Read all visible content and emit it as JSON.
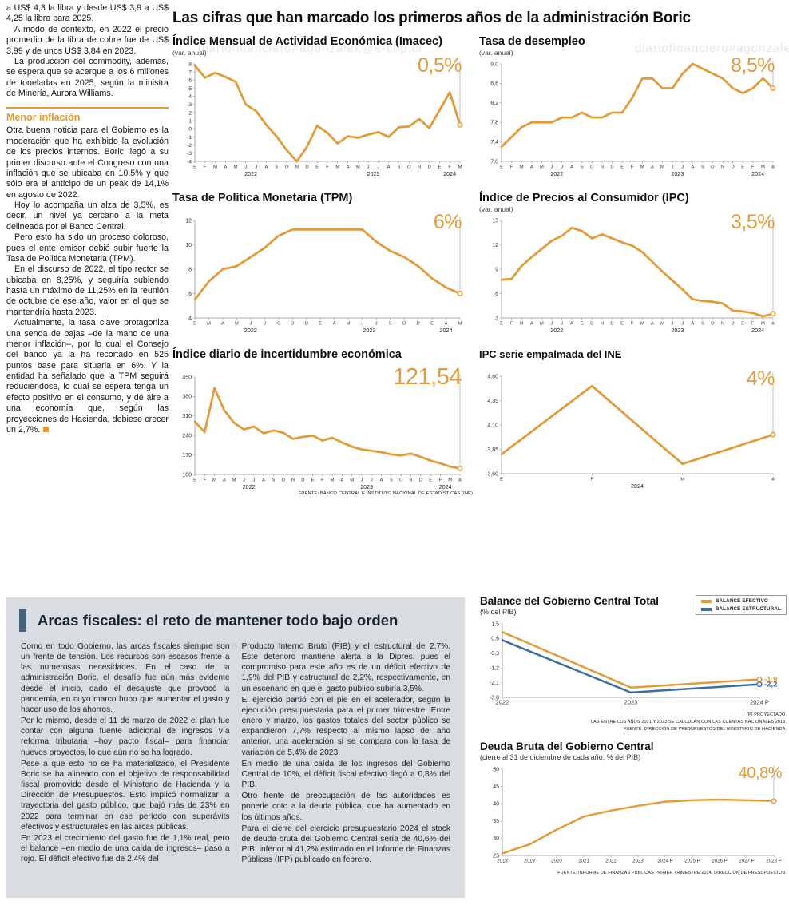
{
  "colors": {
    "orange": "#E39B3A",
    "blue": "#3C6E9F",
    "gray_box": "#D9DCE0",
    "accent_bar": "#47627B"
  },
  "watermark_text": "diariofinanciero#agonzalek@e-clip.cl",
  "main_title": "Las cifras que han marcado los primeros años de la administración Boric",
  "left_article": {
    "paragraphs": [
      "a US$ 4,3 la libra y desde US$ 3,9 a US$ 4,25 la libra para 2025.",
      "A modo de contexto, en 2022 el precio promedio de la libra de cobre fue de US$ 3,99 y de unos US$ 3,84 en 2023.",
      "La producción del commodity, además, se espera que se acerque a los 6 millones de toneladas en 2025, según la ministra de Minería, Aurora Williams."
    ],
    "subhead": "Menor inflación",
    "paragraphs2": [
      "Otra buena noticia para el Gobierno es la moderación que ha exhibido la evolución de los precios internos. Boric llegó a su primer discurso ante el Congreso con una inflación que se ubicaba en 10,5% y que sólo era el anticipo de un peak de 14,1% en agosto de 2022.",
      "Hoy lo acompaña un alza de 3,5%, es decir, un nivel ya cercano a la meta delineada por el Banco Central.",
      "Pero esto ha sido un proceso doloroso, pues el ente emisor debió subir fuerte la Tasa de Política Monetaria (TPM).",
      "En el discurso de 2022, el tipo rector se ubicaba en 8,25%, y seguiría subiendo hasta un máximo de 11,25% en la reunión de octubre de ese año, valor en el que se mantendría hasta 2023.",
      "Actualmente, la tasa clave protagoniza una senda de bajas –de la mano de una menor inflación–, por lo cual el Consejo del banco ya la ha recortado en 525 puntos base para situarla en 6%. Y la entidad ha señalado que la TPM seguirá reduciéndose, lo cual se espera tenga un efecto positivo en el consumo, y dé aire a una economía que, según las proyecciones de Hacienda, debiese crecer un 2,7%."
    ]
  },
  "fiscal_article": {
    "title": "Arcas fiscales: el reto de mantener todo bajo orden",
    "col1": [
      "Como en todo Gobierno, las arcas fiscales siempre son un frente de tensión. Los recursos son escasos frente a las numerosas necesidades. En el caso de la administración Boric, el desafío fue aún más evidente desde el inicio, dado el desajuste que provocó la pandemia, en cuyo marco hubo que aumentar el gasto y hacer uso de los ahorros.",
      "Por lo mismo, desde el 11 de marzo de 2022 el plan fue contar con alguna fuente adicional de ingresos vía reforma tributaria –hoy pacto fiscal– para financiar nuevos proyectos, lo que aún no se ha logrado.",
      "Pese a que esto no se ha materializado, el Presidente Boric se ha alineado con el objetivo de responsabilidad fiscal promovido desde el Ministerio de Hacienda y la Dirección de Presupuestos. Esto implicó normalizar la trayectoria del gasto público, que bajó más de 23% en 2022 para terminar en ese período con superávits efectivos y estructurales en las arcas públicas.",
      "En 2023 el crecimiento del gasto fue de 1,1% real, pero el balance –en medio de una caída de ingresos– pasó a rojo. El déficit efectivo fue de 2,4% del"
    ],
    "col2": [
      "Producto Interno Bruto (PIB) y el estructural de 2,7%. Este deterioro mantiene alerta a la Dipres, pues el compromiso para este año es de un déficit efectivo de 1,9% del PIB y estructural de 2,2%, respectivamente, en un escenario en que el gasto público subiría 3,5%.",
      "El ejercicio partió con el pie en el acelerador, según la ejecución presupuestaria para el primer trimestre. Entre enero y marzo, los gastos totales del sector público se expandieron 7,7% respecto al mismo lapso del año anterior, una aceleración si se compara con la tasa de variación de 5,4% de 2023.",
      "En medio de una caída de los ingresos del Gobierno Central de 10%, el déficit fiscal efectivo llegó a 0,8% del PIB.",
      "Otro frente de preocupación de las autoridades es ponerle coto a la deuda pública, que ha aumentado en los últimos años.",
      "Para el cierre del ejercicio presupuestario 2024 el stock de deuda bruta del Gobierno Central sería de 40,6% del PIB, inferior al 41,2% estimado en el Informe de Finanzas Públicas (IFP) publicado en febrero."
    ]
  },
  "chart_data": [
    {
      "id": "imacec",
      "type": "line",
      "title": "Índice Mensual de Actividad Económica (Imacec)",
      "subtitle": "(var. anual)",
      "big_label": "0,5%",
      "ylim": [
        -4,
        8
      ],
      "yfs": 6.5,
      "yticks": [
        {
          "v": 8,
          "l": "8"
        },
        {
          "v": 7,
          "l": "7"
        },
        {
          "v": 6,
          "l": "6"
        },
        {
          "v": 5,
          "l": "5"
        },
        {
          "v": 4,
          "l": "4"
        },
        {
          "v": 3,
          "l": "3"
        },
        {
          "v": 2,
          "l": "2"
        },
        {
          "v": 1,
          "l": "1"
        },
        {
          "v": 0,
          "l": "0"
        },
        {
          "v": -1,
          "l": "-1"
        },
        {
          "v": -2,
          "l": "-2"
        },
        {
          "v": -3,
          "l": "-3"
        },
        {
          "v": -4,
          "l": "-4"
        }
      ],
      "x_labels": [
        "E",
        "F",
        "M",
        "A",
        "M",
        "J",
        "J",
        "A",
        "S",
        "O",
        "N",
        "D",
        "E",
        "F",
        "M",
        "A",
        "M",
        "J",
        "J",
        "A",
        "S",
        "O",
        "N",
        "D",
        "E",
        "F",
        "M"
      ],
      "year_ticks": [
        {
          "label": "2022",
          "at": 5.5
        },
        {
          "label": "2023",
          "at": 17.5
        },
        {
          "label": "2024",
          "at": 25
        }
      ],
      "drop_line": true,
      "series": [
        {
          "name": "Imacec",
          "color": "#E39B3A",
          "width": 2.8,
          "end_circle": true,
          "values": [
            7.8,
            6.3,
            6.9,
            6.4,
            5.8,
            3.0,
            2.2,
            0.5,
            -0.9,
            -2.6,
            -4.0,
            -2.2,
            0.4,
            -0.5,
            -1.8,
            -0.9,
            -1.1,
            -0.7,
            -0.4,
            -1.0,
            0.2,
            0.3,
            1.2,
            0.1,
            2.3,
            4.5,
            0.5
          ]
        }
      ]
    },
    {
      "id": "desempleo",
      "type": "line",
      "title": "Tasa de desempleo",
      "subtitle": "(var. anual)",
      "big_label": "8,5%",
      "ylim": [
        7.0,
        9.0
      ],
      "yticks": [
        {
          "v": 9.0,
          "l": "9,0"
        },
        {
          "v": 8.6,
          "l": "8,6"
        },
        {
          "v": 8.2,
          "l": "8,2"
        },
        {
          "v": 7.8,
          "l": "7,8"
        },
        {
          "v": 7.4,
          "l": "7,4"
        },
        {
          "v": 7.0,
          "l": "7,0"
        }
      ],
      "x_labels": [
        "E",
        "F",
        "M",
        "A",
        "M",
        "J",
        "J",
        "A",
        "S",
        "O",
        "N",
        "D",
        "E",
        "F",
        "M",
        "A",
        "M",
        "J",
        "J",
        "A",
        "S",
        "O",
        "N",
        "D",
        "E",
        "F",
        "M",
        "A"
      ],
      "year_ticks": [
        {
          "label": "2022",
          "at": 5.5
        },
        {
          "label": "2023",
          "at": 17.5
        },
        {
          "label": "2024",
          "at": 25.5
        }
      ],
      "drop_line": true,
      "series": [
        {
          "name": "Desempleo",
          "color": "#E39B3A",
          "width": 2.8,
          "end_circle": true,
          "values": [
            7.3,
            7.5,
            7.7,
            7.8,
            7.8,
            7.8,
            7.9,
            7.9,
            8.0,
            7.9,
            7.9,
            8.0,
            8.0,
            8.3,
            8.7,
            8.7,
            8.5,
            8.5,
            8.8,
            9.0,
            8.9,
            8.8,
            8.7,
            8.5,
            8.4,
            8.5,
            8.7,
            8.5
          ]
        }
      ]
    },
    {
      "id": "tpm",
      "type": "line",
      "title": "Tasa de Política Monetaria (TPM)",
      "subtitle": "",
      "big_label": "6%",
      "ylim": [
        4,
        12
      ],
      "yticks": [
        {
          "v": 12,
          "l": "12"
        },
        {
          "v": 10,
          "l": "10"
        },
        {
          "v": 8,
          "l": "8"
        },
        {
          "v": 6,
          "l": "6"
        },
        {
          "v": 4,
          "l": "4"
        }
      ],
      "x_labels": [
        "E",
        "M",
        "A",
        "M",
        "J",
        "J",
        "S",
        "O",
        "D",
        "E",
        "A",
        "M",
        "J",
        "J",
        "S",
        "O",
        "D",
        "E",
        "A",
        "M"
      ],
      "year_ticks": [
        {
          "label": "2022",
          "at": 4
        },
        {
          "label": "2023",
          "at": 12.5
        },
        {
          "label": "2024",
          "at": 18
        }
      ],
      "drop_line": true,
      "series": [
        {
          "name": "TPM",
          "color": "#E39B3A",
          "width": 2.8,
          "end_circle": true,
          "values": [
            5.5,
            7.0,
            8.0,
            8.25,
            9.0,
            9.75,
            10.75,
            11.25,
            11.25,
            11.25,
            11.25,
            11.25,
            11.25,
            10.25,
            9.5,
            9.0,
            8.25,
            7.25,
            6.5,
            6.0
          ]
        }
      ]
    },
    {
      "id": "ipc",
      "type": "line",
      "title": "Índice de Precios al Consumidor (IPC)",
      "subtitle": "(var. anual)",
      "big_label": "3,5%",
      "ylim": [
        3,
        15
      ],
      "yticks": [
        {
          "v": 15,
          "l": "15"
        },
        {
          "v": 12,
          "l": "12"
        },
        {
          "v": 9,
          "l": "9"
        },
        {
          "v": 6,
          "l": "6"
        },
        {
          "v": 3,
          "l": "3"
        }
      ],
      "x_labels": [
        "E",
        "F",
        "M",
        "A",
        "M",
        "J",
        "J",
        "A",
        "S",
        "O",
        "N",
        "D",
        "E",
        "F",
        "M",
        "A",
        "M",
        "J",
        "J",
        "A",
        "S",
        "O",
        "N",
        "D",
        "E",
        "F",
        "M",
        "A"
      ],
      "year_ticks": [
        {
          "label": "2022",
          "at": 5.5
        },
        {
          "label": "2023",
          "at": 17.5
        },
        {
          "label": "2024",
          "at": 25.5
        }
      ],
      "drop_line": true,
      "series": [
        {
          "name": "IPC",
          "color": "#E39B3A",
          "width": 2.8,
          "end_circle": true,
          "values": [
            7.7,
            7.8,
            9.4,
            10.5,
            11.5,
            12.5,
            13.1,
            14.1,
            13.7,
            12.8,
            13.3,
            12.8,
            12.3,
            11.9,
            11.1,
            9.9,
            8.7,
            7.6,
            6.5,
            5.3,
            5.1,
            5.0,
            4.8,
            3.9,
            3.8,
            3.6,
            3.2,
            3.5
          ]
        }
      ]
    },
    {
      "id": "incertidumbre",
      "type": "line",
      "title": "Índice diario de incertidumbre económica",
      "subtitle": "",
      "big_label": "121,54",
      "ylim": [
        100,
        450
      ],
      "yticks": [
        {
          "v": 450,
          "l": "450"
        },
        {
          "v": 380,
          "l": "380"
        },
        {
          "v": 310,
          "l": "310"
        },
        {
          "v": 240,
          "l": "240"
        },
        {
          "v": 170,
          "l": "170"
        },
        {
          "v": 100,
          "l": "100"
        }
      ],
      "x_labels": [
        "E",
        "F",
        "M",
        "A",
        "M",
        "J",
        "J",
        "A",
        "S",
        "O",
        "N",
        "D",
        "E",
        "F",
        "M",
        "A",
        "M",
        "J",
        "J",
        "A",
        "S",
        "O",
        "N",
        "D",
        "E",
        "F",
        "M",
        "A"
      ],
      "year_ticks": [
        {
          "label": "2022",
          "at": 5.5
        },
        {
          "label": "2023",
          "at": 17.5
        },
        {
          "label": "2024",
          "at": 25.5
        }
      ],
      "drop_line": true,
      "footnote": "FUENTE: BANCO CENTRAL E INSTITUTO NACIONAL DE ESTADÍSTICAS (INE)",
      "series": [
        {
          "name": "Incertidumbre",
          "color": "#E39B3A",
          "width": 2.8,
          "end_circle": true,
          "values": [
            290,
            252,
            410,
            330,
            285,
            262,
            272,
            248,
            258,
            250,
            228,
            235,
            240,
            222,
            232,
            215,
            200,
            190,
            185,
            180,
            172,
            168,
            175,
            163,
            150,
            140,
            128,
            121.54
          ]
        }
      ]
    },
    {
      "id": "ipc_ine",
      "type": "line",
      "title": "IPC serie empalmada del INE",
      "subtitle": "",
      "big_label": "4%",
      "ylim": [
        3.6,
        4.6
      ],
      "yticks": [
        {
          "v": 4.6,
          "l": "4,60"
        },
        {
          "v": 4.35,
          "l": "4,35"
        },
        {
          "v": 4.1,
          "l": "4,10"
        },
        {
          "v": 3.85,
          "l": "3,85"
        },
        {
          "v": 3.6,
          "l": "3,60"
        }
      ],
      "x_labels": [
        "E",
        "F",
        "M",
        "A"
      ],
      "year_ticks": [
        {
          "label": "2024",
          "at": 1.5
        }
      ],
      "drop_line": true,
      "series": [
        {
          "name": "IPC INE",
          "color": "#E39B3A",
          "width": 2.8,
          "end_circle": true,
          "values": [
            3.8,
            4.5,
            3.7,
            4.0
          ]
        }
      ]
    },
    {
      "id": "balance",
      "type": "line",
      "title": "Balance del Gobierno Central Total",
      "subtitle": "(% del PIB)",
      "ylim": [
        -3.0,
        1.5
      ],
      "xfs": 7.5,
      "yticks": [
        {
          "v": 1.5,
          "l": "1,5"
        },
        {
          "v": 0.6,
          "l": "0,6"
        },
        {
          "v": -0.3,
          "l": "-0,3"
        },
        {
          "v": -1.2,
          "l": "-1,2"
        },
        {
          "v": -2.1,
          "l": "-2,1"
        },
        {
          "v": -3.0,
          "l": "-3,0"
        }
      ],
      "x_labels": [
        "2022",
        "2023",
        "2024 P"
      ],
      "year_ticks": [],
      "legend": [
        {
          "label": "BALANCE EFECTIVO",
          "color": "#E39B3A"
        },
        {
          "label": "BALANCE ESTRUCTURAL",
          "color": "#3C6E9F"
        }
      ],
      "notes": [
        "(P) PROYECTADO.",
        "LAS ENTRE LOS AÑOS 2021 Y 2023 SE CALCULAN  CON LAS CUENTAS NACIONALES 2018.",
        "FUENTE: DIRECCIÓN DE PRESUPUESTOS DEL MINISTERIO DE HACIENDA."
      ],
      "series": [
        {
          "name": "Balance efectivo",
          "color": "#E39B3A",
          "width": 2.5,
          "end_circle": true,
          "end_label": "-1,9",
          "values": [
            1.0,
            -2.4,
            -1.9
          ]
        },
        {
          "name": "Balance estructural",
          "color": "#3C6E9F",
          "width": 2.5,
          "end_circle": true,
          "end_label": "-2,2",
          "values": [
            0.5,
            -2.7,
            -2.2
          ]
        }
      ]
    },
    {
      "id": "deuda",
      "type": "line",
      "title": "Deuda Bruta del Gobierno Central",
      "subtitle": "(cierre al 31 de diciembre de cada año, % del PIB)",
      "big_label": "40,8%",
      "ylim": [
        25,
        50
      ],
      "xfs": 6.2,
      "yticks": [
        {
          "v": 50,
          "l": "50"
        },
        {
          "v": 45,
          "l": "45"
        },
        {
          "v": 40,
          "l": "40"
        },
        {
          "v": 35,
          "l": "35"
        },
        {
          "v": 30,
          "l": "30"
        },
        {
          "v": 25,
          "l": "25"
        }
      ],
      "x_labels": [
        "2018",
        "2019",
        "2020",
        "2021",
        "2022",
        "2023",
        "2024 P",
        "2025 P",
        "2026 P",
        "2027 P",
        "2028 P"
      ],
      "year_ticks": [],
      "drop_line": true,
      "footnote": "FUENTE: INFORME DE FINANZAS PÚBLICAS PRIMER TRIMESTRE 2024, DIRECCIÓN DE PRESUPUESTOS.",
      "series": [
        {
          "name": "Deuda bruta",
          "color": "#E39B3A",
          "width": 2.5,
          "end_circle": true,
          "values": [
            25.6,
            28.2,
            32.5,
            36.3,
            38.0,
            39.4,
            40.6,
            41.0,
            41.2,
            41.0,
            40.8
          ]
        }
      ]
    }
  ]
}
